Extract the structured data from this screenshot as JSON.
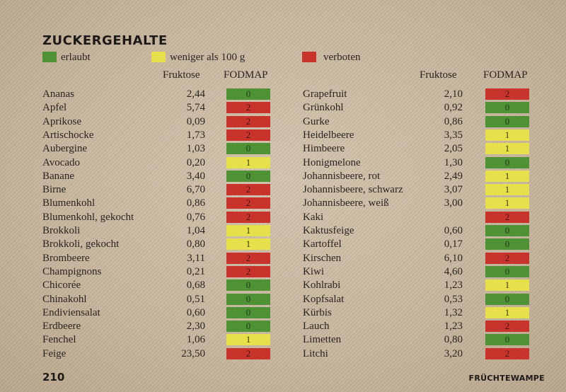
{
  "title": "ZUCKERGEHALTE",
  "legend": [
    {
      "label": "erlaubt",
      "color": "#4f9235"
    },
    {
      "label": "weniger als 100 g",
      "color": "#e6e04a"
    },
    {
      "label": "verboten",
      "color": "#c8332c"
    }
  ],
  "columns": {
    "fructose": "Fruktose",
    "fodmap": "FODMAP"
  },
  "left": [
    {
      "name": "Ananas",
      "fructose": "2,44",
      "fodmap": "0"
    },
    {
      "name": "Apfel",
      "fructose": "5,74",
      "fodmap": "2"
    },
    {
      "name": "Aprikose",
      "fructose": "0,09",
      "fodmap": "2"
    },
    {
      "name": "Artischocke",
      "fructose": "1,73",
      "fodmap": "2"
    },
    {
      "name": "Aubergine",
      "fructose": "1,03",
      "fodmap": "0"
    },
    {
      "name": "Avocado",
      "fructose": "0,20",
      "fodmap": "1"
    },
    {
      "name": "Banane",
      "fructose": "3,40",
      "fodmap": "0"
    },
    {
      "name": "Birne",
      "fructose": "6,70",
      "fodmap": "2"
    },
    {
      "name": "Blumenkohl",
      "fructose": "0,86",
      "fodmap": "2"
    },
    {
      "name": "Blumenkohl, gekocht",
      "fructose": "0,76",
      "fodmap": "2"
    },
    {
      "name": "Brokkoli",
      "fructose": "1,04",
      "fodmap": "1"
    },
    {
      "name": "Brokkoli, gekocht",
      "fructose": "0,80",
      "fodmap": "1"
    },
    {
      "name": "Brombeere",
      "fructose": "3,11",
      "fodmap": "2"
    },
    {
      "name": "Champignons",
      "fructose": "0,21",
      "fodmap": "2"
    },
    {
      "name": "Chicorée",
      "fructose": "0,68",
      "fodmap": "0"
    },
    {
      "name": "Chinakohl",
      "fructose": "0,51",
      "fodmap": "0"
    },
    {
      "name": "Endiviensalat",
      "fructose": "0,60",
      "fodmap": "0"
    },
    {
      "name": "Erdbeere",
      "fructose": "2,30",
      "fodmap": "0"
    },
    {
      "name": "Fenchel",
      "fructose": "1,06",
      "fodmap": "1"
    },
    {
      "name": "Feige",
      "fructose": "23,50",
      "fodmap": "2"
    }
  ],
  "right": [
    {
      "name": "Grapefruit",
      "fructose": "2,10",
      "fodmap": "2"
    },
    {
      "name": "Grünkohl",
      "fructose": "0,92",
      "fodmap": "0"
    },
    {
      "name": "Gurke",
      "fructose": "0,86",
      "fodmap": "0"
    },
    {
      "name": "Heidelbeere",
      "fructose": "3,35",
      "fodmap": "1"
    },
    {
      "name": "Himbeere",
      "fructose": "2,05",
      "fodmap": "1"
    },
    {
      "name": "Honigmelone",
      "fructose": "1,30",
      "fodmap": "0"
    },
    {
      "name": "Johannisbeere, rot",
      "fructose": "2,49",
      "fodmap": "1"
    },
    {
      "name": "Johannisbeere, schwarz",
      "fructose": "3,07",
      "fodmap": "1"
    },
    {
      "name": "Johannisbeere, weiß",
      "fructose": "3,00",
      "fodmap": "1"
    },
    {
      "name": "Kaki",
      "fructose": "",
      "fodmap": "2"
    },
    {
      "name": "Kaktusfeige",
      "fructose": "0,60",
      "fodmap": "0"
    },
    {
      "name": "Kartoffel",
      "fructose": "0,17",
      "fodmap": "0"
    },
    {
      "name": "Kirschen",
      "fructose": "6,10",
      "fodmap": "2"
    },
    {
      "name": "Kiwi",
      "fructose": "4,60",
      "fodmap": "0"
    },
    {
      "name": "Kohlrabi",
      "fructose": "1,23",
      "fodmap": "1"
    },
    {
      "name": "Kopfsalat",
      "fructose": "0,53",
      "fodmap": "0"
    },
    {
      "name": "Kürbis",
      "fructose": "1,32",
      "fodmap": "1"
    },
    {
      "name": "Lauch",
      "fructose": "1,23",
      "fodmap": "2"
    },
    {
      "name": "Limetten",
      "fructose": "0,80",
      "fodmap": "0"
    },
    {
      "name": "Litchi",
      "fructose": "3,20",
      "fodmap": "2"
    }
  ],
  "page_number": "210",
  "footer_brand": "FRÜCHTEWAMPE"
}
